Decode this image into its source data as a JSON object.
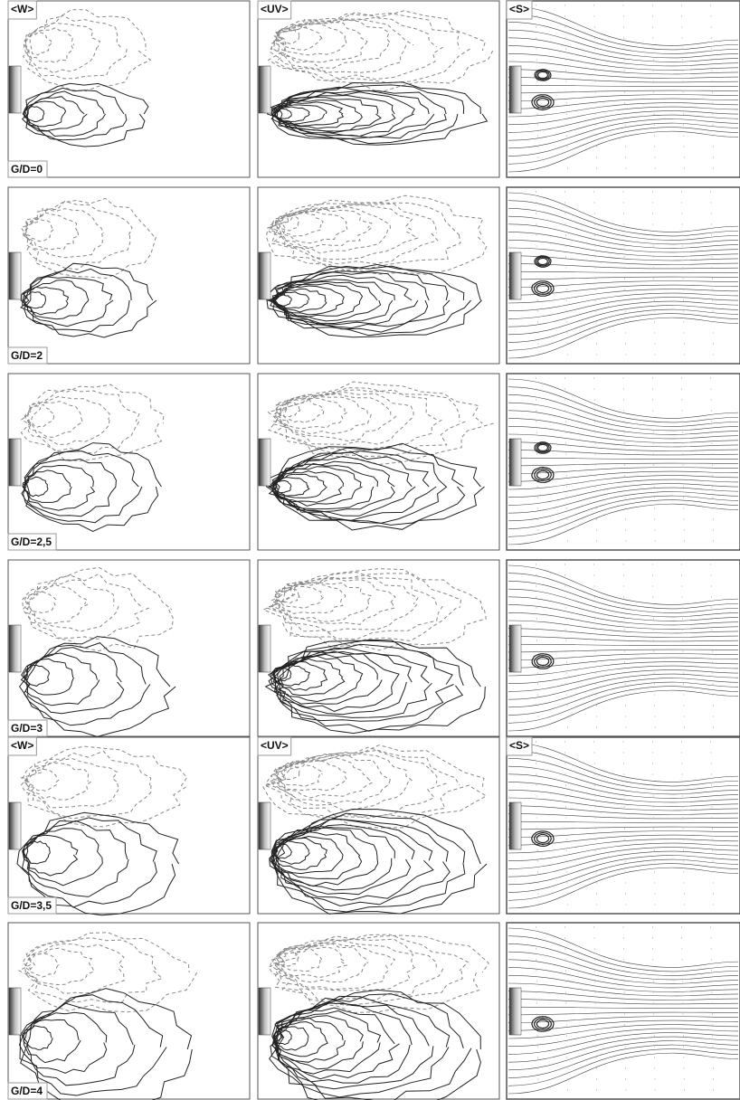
{
  "rows": [
    {
      "gd_label": "G/D=0",
      "headers": [
        "<W>",
        "<UV>",
        "<S>"
      ]
    },
    {
      "gd_label": "G/D=2"
    },
    {
      "gd_label": "G/D=2,5"
    },
    {
      "gd_label": "G/D=3"
    },
    {
      "gd_label": "G/D=3,5",
      "headers": [
        "<W>",
        "<UV>",
        "<S>"
      ]
    },
    {
      "gd_label": "G/D=4"
    }
  ]
}
